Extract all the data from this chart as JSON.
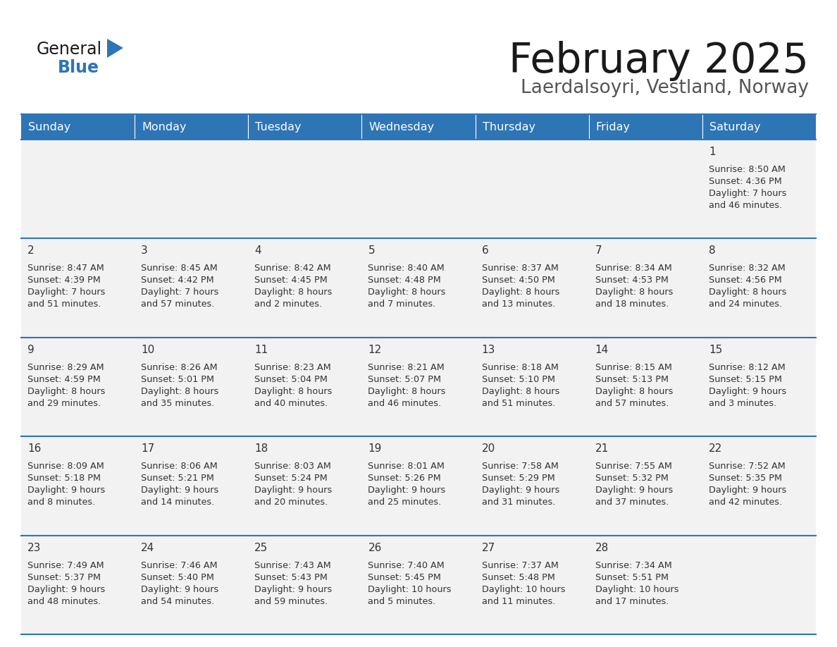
{
  "title": "February 2025",
  "subtitle": "Laerdalsoyri, Vestland, Norway",
  "days_of_week": [
    "Sunday",
    "Monday",
    "Tuesday",
    "Wednesday",
    "Thursday",
    "Friday",
    "Saturday"
  ],
  "header_bg": "#2E75B6",
  "header_text": "#FFFFFF",
  "cell_bg": "#F2F2F2",
  "border_color": "#2E75B6",
  "text_color": "#333333",
  "title_color": "#1A1A1A",
  "subtitle_color": "#555555",
  "calendar_data": [
    [
      {
        "day": "",
        "sunrise": "",
        "sunset": "",
        "daylight": ""
      },
      {
        "day": "",
        "sunrise": "",
        "sunset": "",
        "daylight": ""
      },
      {
        "day": "",
        "sunrise": "",
        "sunset": "",
        "daylight": ""
      },
      {
        "day": "",
        "sunrise": "",
        "sunset": "",
        "daylight": ""
      },
      {
        "day": "",
        "sunrise": "",
        "sunset": "",
        "daylight": ""
      },
      {
        "day": "",
        "sunrise": "",
        "sunset": "",
        "daylight": ""
      },
      {
        "day": "1",
        "sunrise": "8:50 AM",
        "sunset": "4:36 PM",
        "daylight": "7 hours\nand 46 minutes."
      }
    ],
    [
      {
        "day": "2",
        "sunrise": "8:47 AM",
        "sunset": "4:39 PM",
        "daylight": "7 hours\nand 51 minutes."
      },
      {
        "day": "3",
        "sunrise": "8:45 AM",
        "sunset": "4:42 PM",
        "daylight": "7 hours\nand 57 minutes."
      },
      {
        "day": "4",
        "sunrise": "8:42 AM",
        "sunset": "4:45 PM",
        "daylight": "8 hours\nand 2 minutes."
      },
      {
        "day": "5",
        "sunrise": "8:40 AM",
        "sunset": "4:48 PM",
        "daylight": "8 hours\nand 7 minutes."
      },
      {
        "day": "6",
        "sunrise": "8:37 AM",
        "sunset": "4:50 PM",
        "daylight": "8 hours\nand 13 minutes."
      },
      {
        "day": "7",
        "sunrise": "8:34 AM",
        "sunset": "4:53 PM",
        "daylight": "8 hours\nand 18 minutes."
      },
      {
        "day": "8",
        "sunrise": "8:32 AM",
        "sunset": "4:56 PM",
        "daylight": "8 hours\nand 24 minutes."
      }
    ],
    [
      {
        "day": "9",
        "sunrise": "8:29 AM",
        "sunset": "4:59 PM",
        "daylight": "8 hours\nand 29 minutes."
      },
      {
        "day": "10",
        "sunrise": "8:26 AM",
        "sunset": "5:01 PM",
        "daylight": "8 hours\nand 35 minutes."
      },
      {
        "day": "11",
        "sunrise": "8:23 AM",
        "sunset": "5:04 PM",
        "daylight": "8 hours\nand 40 minutes."
      },
      {
        "day": "12",
        "sunrise": "8:21 AM",
        "sunset": "5:07 PM",
        "daylight": "8 hours\nand 46 minutes."
      },
      {
        "day": "13",
        "sunrise": "8:18 AM",
        "sunset": "5:10 PM",
        "daylight": "8 hours\nand 51 minutes."
      },
      {
        "day": "14",
        "sunrise": "8:15 AM",
        "sunset": "5:13 PM",
        "daylight": "8 hours\nand 57 minutes."
      },
      {
        "day": "15",
        "sunrise": "8:12 AM",
        "sunset": "5:15 PM",
        "daylight": "9 hours\nand 3 minutes."
      }
    ],
    [
      {
        "day": "16",
        "sunrise": "8:09 AM",
        "sunset": "5:18 PM",
        "daylight": "9 hours\nand 8 minutes."
      },
      {
        "day": "17",
        "sunrise": "8:06 AM",
        "sunset": "5:21 PM",
        "daylight": "9 hours\nand 14 minutes."
      },
      {
        "day": "18",
        "sunrise": "8:03 AM",
        "sunset": "5:24 PM",
        "daylight": "9 hours\nand 20 minutes."
      },
      {
        "day": "19",
        "sunrise": "8:01 AM",
        "sunset": "5:26 PM",
        "daylight": "9 hours\nand 25 minutes."
      },
      {
        "day": "20",
        "sunrise": "7:58 AM",
        "sunset": "5:29 PM",
        "daylight": "9 hours\nand 31 minutes."
      },
      {
        "day": "21",
        "sunrise": "7:55 AM",
        "sunset": "5:32 PM",
        "daylight": "9 hours\nand 37 minutes."
      },
      {
        "day": "22",
        "sunrise": "7:52 AM",
        "sunset": "5:35 PM",
        "daylight": "9 hours\nand 42 minutes."
      }
    ],
    [
      {
        "day": "23",
        "sunrise": "7:49 AM",
        "sunset": "5:37 PM",
        "daylight": "9 hours\nand 48 minutes."
      },
      {
        "day": "24",
        "sunrise": "7:46 AM",
        "sunset": "5:40 PM",
        "daylight": "9 hours\nand 54 minutes."
      },
      {
        "day": "25",
        "sunrise": "7:43 AM",
        "sunset": "5:43 PM",
        "daylight": "9 hours\nand 59 minutes."
      },
      {
        "day": "26",
        "sunrise": "7:40 AM",
        "sunset": "5:45 PM",
        "daylight": "10 hours\nand 5 minutes."
      },
      {
        "day": "27",
        "sunrise": "7:37 AM",
        "sunset": "5:48 PM",
        "daylight": "10 hours\nand 11 minutes."
      },
      {
        "day": "28",
        "sunrise": "7:34 AM",
        "sunset": "5:51 PM",
        "daylight": "10 hours\nand 17 minutes."
      },
      {
        "day": "",
        "sunrise": "",
        "sunset": "",
        "daylight": ""
      }
    ]
  ],
  "logo_color_general": "#1A1A1A",
  "logo_color_blue": "#2E75B6"
}
